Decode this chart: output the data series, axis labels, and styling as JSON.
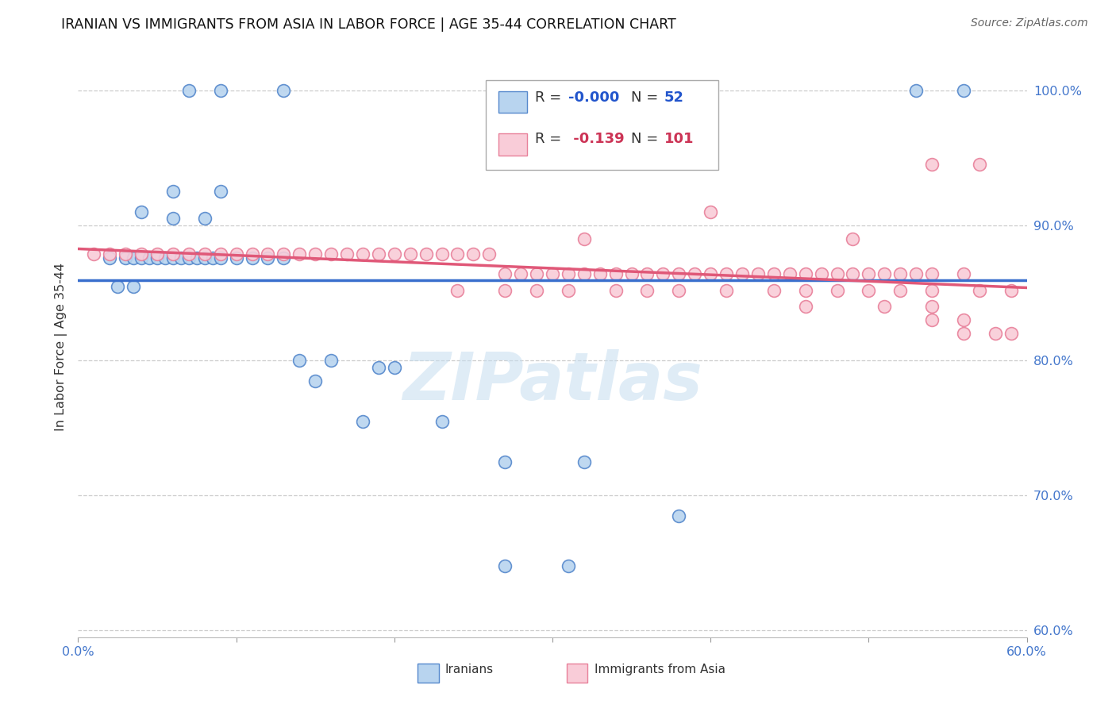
{
  "title": "IRANIAN VS IMMIGRANTS FROM ASIA IN LABOR FORCE | AGE 35-44 CORRELATION CHART",
  "source": "Source: ZipAtlas.com",
  "ylabel": "In Labor Force | Age 35-44",
  "x_min": 0.0,
  "x_max": 0.6,
  "y_min": 0.595,
  "y_max": 1.025,
  "y_ticks": [
    0.6,
    0.7,
    0.8,
    0.9,
    1.0
  ],
  "y_tick_labels": [
    "60.0%",
    "70.0%",
    "80.0%",
    "90.0%",
    "100.0%"
  ],
  "x_ticks": [
    0.0,
    0.1,
    0.2,
    0.3,
    0.4,
    0.5,
    0.6
  ],
  "x_tick_labels": [
    "0.0%",
    "",
    "",
    "",
    "",
    "",
    "60.0%"
  ],
  "grid_color": "#cccccc",
  "background_color": "#ffffff",
  "iranians_fill": "#b8d4ef",
  "iranians_edge": "#5588cc",
  "immigrants_fill": "#f9ccd8",
  "immigrants_edge": "#e8809a",
  "trend_blue": "#3a6fcd",
  "trend_pink": "#e05878",
  "tick_color": "#4477cc",
  "watermark_color": "#c5ddf0",
  "legend_r1_color": "#2255cc",
  "legend_n1_color": "#2255cc",
  "legend_r2_color": "#cc3355",
  "legend_n2_color": "#cc3355",
  "iranians_x": [
    0.07,
    0.09,
    0.13,
    0.3,
    0.53,
    0.56,
    0.06,
    0.09,
    0.04,
    0.06,
    0.08,
    0.02,
    0.03,
    0.035,
    0.04,
    0.045,
    0.05,
    0.055,
    0.06,
    0.065,
    0.07,
    0.075,
    0.08,
    0.085,
    0.09,
    0.1,
    0.11,
    0.12,
    0.13,
    0.025,
    0.035,
    0.14,
    0.16,
    0.19,
    0.2,
    0.15,
    0.18,
    0.23,
    0.27,
    0.32,
    0.38,
    0.27,
    0.31
  ],
  "iranians_y": [
    1.0,
    1.0,
    1.0,
    1.0,
    1.0,
    1.0,
    0.925,
    0.925,
    0.91,
    0.905,
    0.905,
    0.876,
    0.876,
    0.876,
    0.876,
    0.876,
    0.876,
    0.876,
    0.876,
    0.876,
    0.876,
    0.876,
    0.876,
    0.876,
    0.876,
    0.876,
    0.876,
    0.876,
    0.876,
    0.855,
    0.855,
    0.8,
    0.8,
    0.795,
    0.795,
    0.785,
    0.755,
    0.755,
    0.725,
    0.725,
    0.685,
    0.648,
    0.648
  ],
  "immigrants_x": [
    0.54,
    0.57,
    0.4,
    0.32,
    0.49,
    0.01,
    0.02,
    0.03,
    0.04,
    0.05,
    0.06,
    0.07,
    0.08,
    0.09,
    0.1,
    0.11,
    0.12,
    0.13,
    0.14,
    0.15,
    0.16,
    0.17,
    0.18,
    0.19,
    0.2,
    0.21,
    0.22,
    0.23,
    0.24,
    0.25,
    0.26,
    0.27,
    0.28,
    0.29,
    0.3,
    0.31,
    0.32,
    0.33,
    0.34,
    0.35,
    0.36,
    0.37,
    0.38,
    0.39,
    0.4,
    0.41,
    0.42,
    0.43,
    0.44,
    0.45,
    0.46,
    0.47,
    0.48,
    0.49,
    0.5,
    0.51,
    0.52,
    0.53,
    0.54,
    0.56,
    0.24,
    0.27,
    0.29,
    0.31,
    0.34,
    0.36,
    0.38,
    0.41,
    0.44,
    0.46,
    0.48,
    0.5,
    0.52,
    0.54,
    0.57,
    0.59,
    0.46,
    0.51,
    0.54,
    0.54,
    0.56,
    0.56,
    0.58,
    0.59
  ],
  "immigrants_y": [
    0.945,
    0.945,
    0.91,
    0.89,
    0.89,
    0.879,
    0.879,
    0.879,
    0.879,
    0.879,
    0.879,
    0.879,
    0.879,
    0.879,
    0.879,
    0.879,
    0.879,
    0.879,
    0.879,
    0.879,
    0.879,
    0.879,
    0.879,
    0.879,
    0.879,
    0.879,
    0.879,
    0.879,
    0.879,
    0.879,
    0.879,
    0.864,
    0.864,
    0.864,
    0.864,
    0.864,
    0.864,
    0.864,
    0.864,
    0.864,
    0.864,
    0.864,
    0.864,
    0.864,
    0.864,
    0.864,
    0.864,
    0.864,
    0.864,
    0.864,
    0.864,
    0.864,
    0.864,
    0.864,
    0.864,
    0.864,
    0.864,
    0.864,
    0.864,
    0.864,
    0.852,
    0.852,
    0.852,
    0.852,
    0.852,
    0.852,
    0.852,
    0.852,
    0.852,
    0.852,
    0.852,
    0.852,
    0.852,
    0.852,
    0.852,
    0.852,
    0.84,
    0.84,
    0.84,
    0.83,
    0.83,
    0.82,
    0.82,
    0.82
  ]
}
